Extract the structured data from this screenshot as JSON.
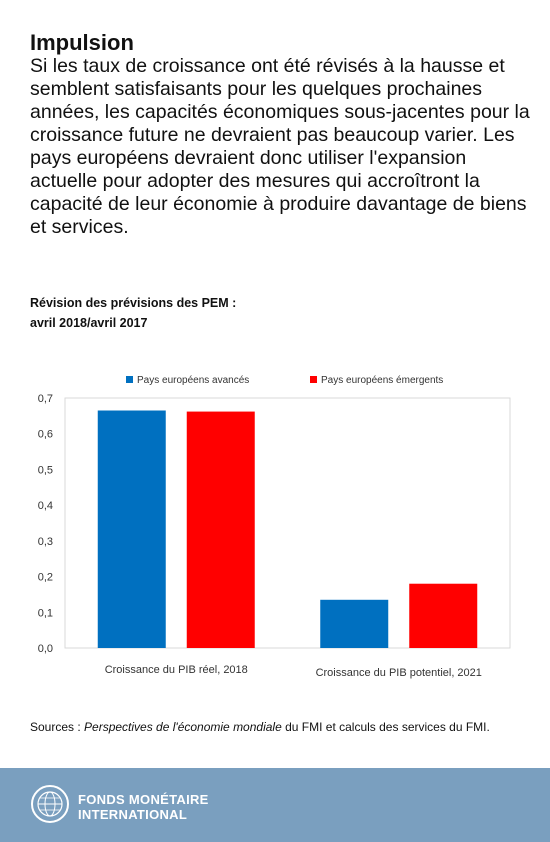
{
  "header": {
    "title": "Impulsion",
    "text": "Si les taux de croissance ont été révisés à la hausse et semblent satisfaisants pour les quelques prochaines années, les capacités économiques sous-jacentes pour la croissance future ne devraient pas beaucoup varier. Les pays européens devraient donc utiliser l'expansion actuelle pour adopter des mesures qui accroîtront la capacité de leur économie à produire davantage de biens et services."
  },
  "chart_title": {
    "line1": "Révision des prévisions des PEM :",
    "line2": "avril 2018/avril 2017"
  },
  "chart_data": {
    "type": "bar",
    "categories": [
      "Croissance du PIB réel, 2018",
      "Croissance du PIB potentiel, 2021"
    ],
    "series": [
      {
        "name": "Pays européens avancés",
        "values": [
          0.665,
          0.135
        ],
        "color": "#0070c0"
      },
      {
        "name": "Pays européens émergents",
        "values": [
          0.662,
          0.18
        ],
        "color": "#ff0000"
      }
    ],
    "ylim": [
      0,
      0.7
    ],
    "yticks": [
      "0,0",
      "0,1",
      "0,2",
      "0,3",
      "0,4",
      "0,5",
      "0,6",
      "0,7"
    ],
    "grid": false,
    "legend": "top"
  },
  "sources": {
    "prefix": "Sources : ",
    "italic": "Perspectives de l'économie mondiale",
    "suffix": " du FMI et calculs des services du FMI."
  },
  "footer": {
    "logo_line1": "FONDS MONÉTAIRE",
    "logo_line2": "INTERNATIONAL",
    "seal_icon": "imf-seal-icon",
    "bg_color": "#7a9fbf"
  }
}
